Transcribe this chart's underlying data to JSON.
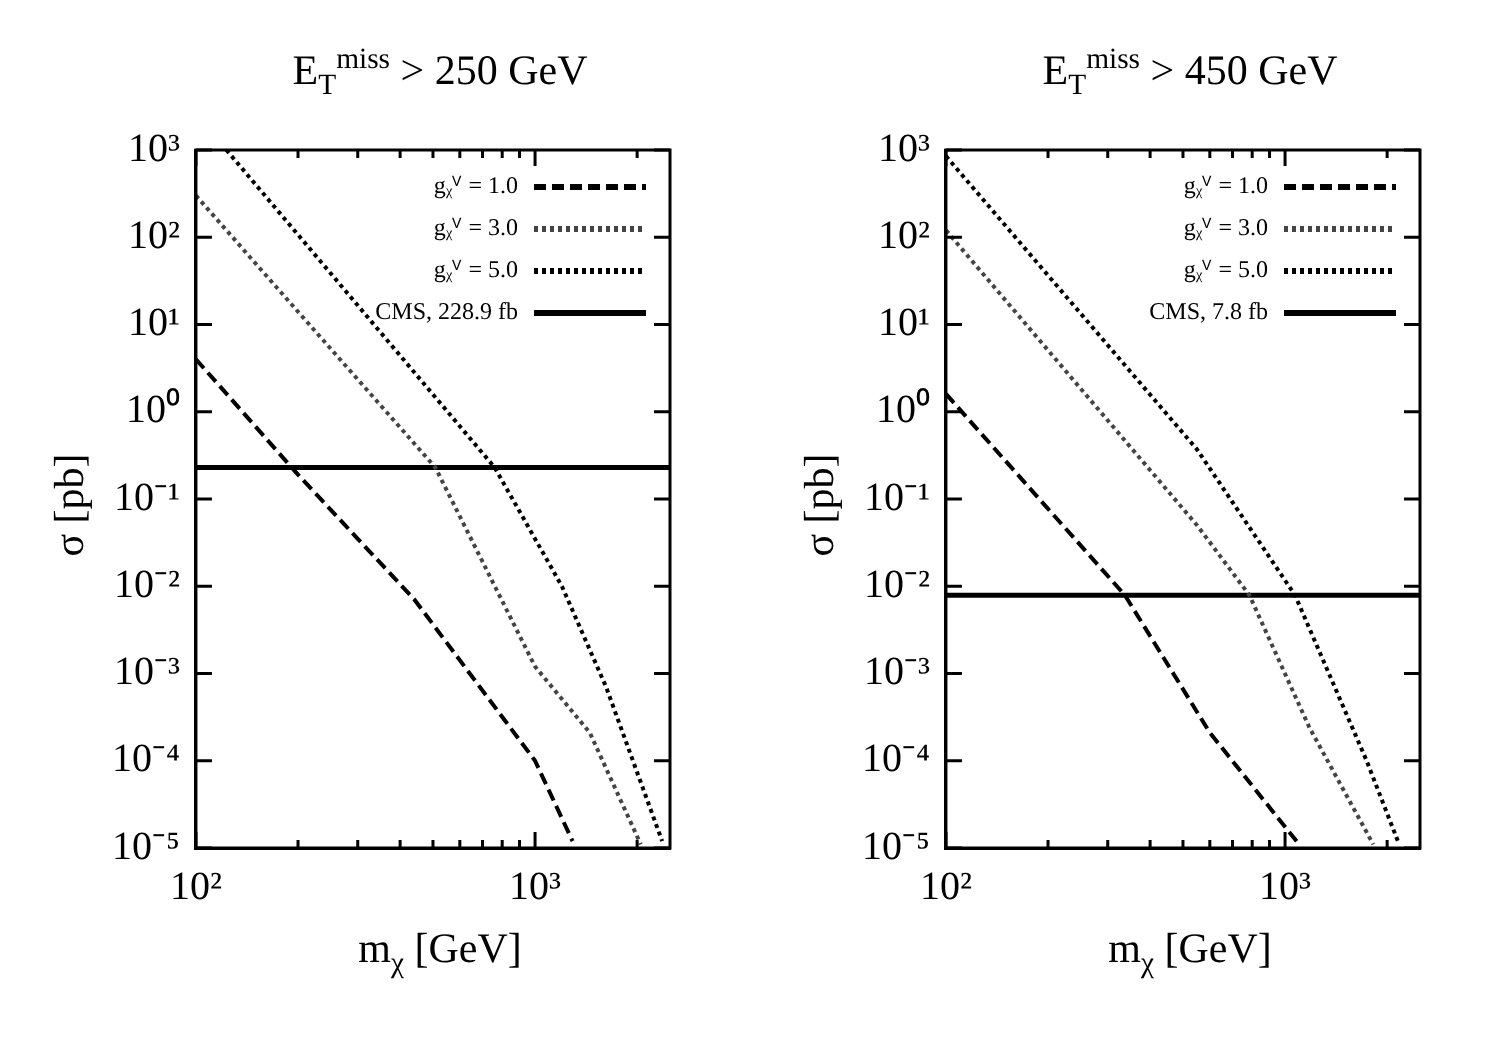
{
  "chart_data": [
    {
      "type": "line",
      "title": "E$_{T}$$^{miss}$ > 250 GeV",
      "xlabel": "m$_{χ}$ [GeV]",
      "ylabel": "σ [pb]",
      "log": "xy",
      "xlim": [
        100,
        2500
      ],
      "ylim": [
        1e-05,
        1000
      ],
      "xticks": [
        {
          "value": 100,
          "label": "10²"
        },
        {
          "value": 200,
          "label": null
        },
        {
          "value": 300,
          "label": null
        },
        {
          "value": 400,
          "label": null
        },
        {
          "value": 500,
          "label": null
        },
        {
          "value": 600,
          "label": null
        },
        {
          "value": 700,
          "label": null
        },
        {
          "value": 800,
          "label": null
        },
        {
          "value": 900,
          "label": null
        },
        {
          "value": 1000,
          "label": "10³"
        },
        {
          "value": 2000,
          "label": null
        }
      ],
      "yticks": [
        {
          "value": 1e-05,
          "label": "10⁻⁵"
        },
        {
          "value": 0.0001,
          "label": "10⁻⁴"
        },
        {
          "value": 0.001,
          "label": "10⁻³"
        },
        {
          "value": 0.01,
          "label": "10⁻²"
        },
        {
          "value": 0.1,
          "label": "10⁻¹"
        },
        {
          "value": 1,
          "label": "10⁰"
        },
        {
          "value": 10,
          "label": "10¹"
        },
        {
          "value": 100,
          "label": "10²"
        },
        {
          "value": 1000,
          "label": "10³"
        }
      ],
      "grid": false,
      "legend": "top right",
      "marker": "none",
      "series": [
        {
          "name": "gᵪⱽ = 1.0",
          "color": "#000000",
          "line_style": "dashed",
          "x": [
            100,
            200,
            300,
            440,
            1000,
            1290
          ],
          "values": [
            4,
            0.19,
            0.035,
            0.0071,
            0.0001,
            1.2e-05
          ]
        },
        {
          "name": "gᵪⱽ = 3.0",
          "color": "#444444",
          "line_style": "dotted",
          "x": [
            100,
            200,
            508,
            1000,
            1450,
            2050
          ],
          "values": [
            300,
            14,
            0.23,
            0.0012,
            0.00021,
            1.1e-05
          ]
        },
        {
          "name": "gᵪⱽ = 5.0",
          "color": "#000000",
          "line_style": "dotted",
          "x": [
            123,
            760,
            1200,
            1620,
            2370
          ],
          "values": [
            1000,
            0.23,
            0.01,
            0.0007,
            1.2e-05
          ]
        },
        {
          "name": "CMS, 228.9 fb",
          "color": "#000000",
          "line_style": "solid",
          "x": [
            100,
            2500
          ],
          "values": [
            0.23,
            0.23
          ]
        }
      ]
    },
    {
      "type": "line",
      "title": "E$_{T}$$^{miss}$ > 450 GeV",
      "xlabel": "m$_{χ}$ [GeV]",
      "ylabel": "σ [pb]",
      "log": "xy",
      "xlim": [
        100,
        2500
      ],
      "ylim": [
        1e-05,
        1000
      ],
      "xticks": [
        {
          "value": 100,
          "label": "10²"
        },
        {
          "value": 200,
          "label": null
        },
        {
          "value": 300,
          "label": null
        },
        {
          "value": 400,
          "label": null
        },
        {
          "value": 500,
          "label": null
        },
        {
          "value": 600,
          "label": null
        },
        {
          "value": 700,
          "label": null
        },
        {
          "value": 800,
          "label": null
        },
        {
          "value": 900,
          "label": null
        },
        {
          "value": 1000,
          "label": "10³"
        },
        {
          "value": 2000,
          "label": null
        }
      ],
      "yticks": [
        {
          "value": 1e-05,
          "label": "10⁻⁵"
        },
        {
          "value": 0.0001,
          "label": "10⁻⁴"
        },
        {
          "value": 0.001,
          "label": "10⁻³"
        },
        {
          "value": 0.01,
          "label": "10⁻²"
        },
        {
          "value": 0.1,
          "label": "10⁻¹"
        },
        {
          "value": 1,
          "label": "10⁰"
        },
        {
          "value": 10,
          "label": "10¹"
        },
        {
          "value": 100,
          "label": "10²"
        },
        {
          "value": 1000,
          "label": "10³"
        }
      ],
      "grid": false,
      "legend": "top right",
      "marker": "none",
      "series": [
        {
          "name": "gᵪⱽ = 1.0",
          "color": "#000000",
          "line_style": "dashed",
          "x": [
            100,
            337,
            600,
            1100
          ],
          "values": [
            1.6,
            0.0079,
            0.00021,
            1.1e-05
          ]
        },
        {
          "name": "gᵪⱽ = 3.0",
          "color": "#444444",
          "line_style": "dotted",
          "x": [
            100,
            550,
            785,
            1180,
            1820
          ],
          "values": [
            120,
            0.05,
            0.0079,
            0.00024,
            1.1e-05
          ]
        },
        {
          "name": "gᵪⱽ = 5.0",
          "color": "#000000",
          "line_style": "dotted",
          "x": [
            100,
            550,
            1070,
            1740,
            2170
          ],
          "values": [
            850,
            0.37,
            0.0079,
            0.0001,
            1.1e-05
          ]
        },
        {
          "name": "CMS, 7.8 fb",
          "color": "#000000",
          "line_style": "solid",
          "x": [
            100,
            2500
          ],
          "values": [
            0.0079,
            0.0079
          ]
        }
      ]
    }
  ]
}
